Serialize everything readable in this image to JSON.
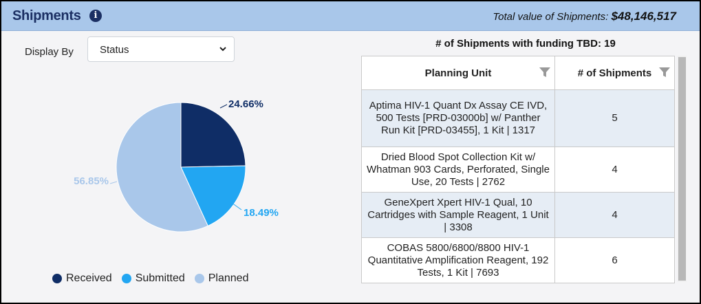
{
  "header": {
    "title": "Shipments",
    "total_label": "Total value of Shipments:",
    "total_value": "$48,146,517"
  },
  "display_by": {
    "label": "Display By",
    "selected": "Status"
  },
  "pie": {
    "slices": [
      {
        "name": "Received",
        "percent": 24.66,
        "label": "24.66%",
        "color": "#0f2d66"
      },
      {
        "name": "Submitted",
        "percent": 18.49,
        "label": "18.49%",
        "color": "#22a6f2"
      },
      {
        "name": "Planned",
        "percent": 56.85,
        "label": "56.85%",
        "color": "#a9c7ea"
      }
    ]
  },
  "legend": [
    "Received",
    "Submitted",
    "Planned"
  ],
  "table": {
    "caption": "# of Shipments with funding TBD: 19",
    "headers": [
      "Planning Unit",
      "# of Shipments"
    ],
    "rows": [
      {
        "unit": "Aptima HIV-1 Quant Dx Assay CE IVD, 500 Tests [PRD-03000b] w/ Panther Run Kit [PRD-03455], 1 Kit | 1317",
        "count": "5"
      },
      {
        "unit": "Dried Blood Spot Collection Kit w/ Whatman 903 Cards, Perforated, Single Use, 20 Tests | 2762",
        "count": "4"
      },
      {
        "unit": "GeneXpert Xpert HIV-1 Qual, 10 Cartridges with Sample Reagent, 1 Unit | 3308",
        "count": "4"
      },
      {
        "unit": "COBAS 5800/6800/8800 HIV-1 Quantitative Amplification Reagent, 192 Tests, 1 Kit | 7693",
        "count": "6"
      }
    ]
  }
}
